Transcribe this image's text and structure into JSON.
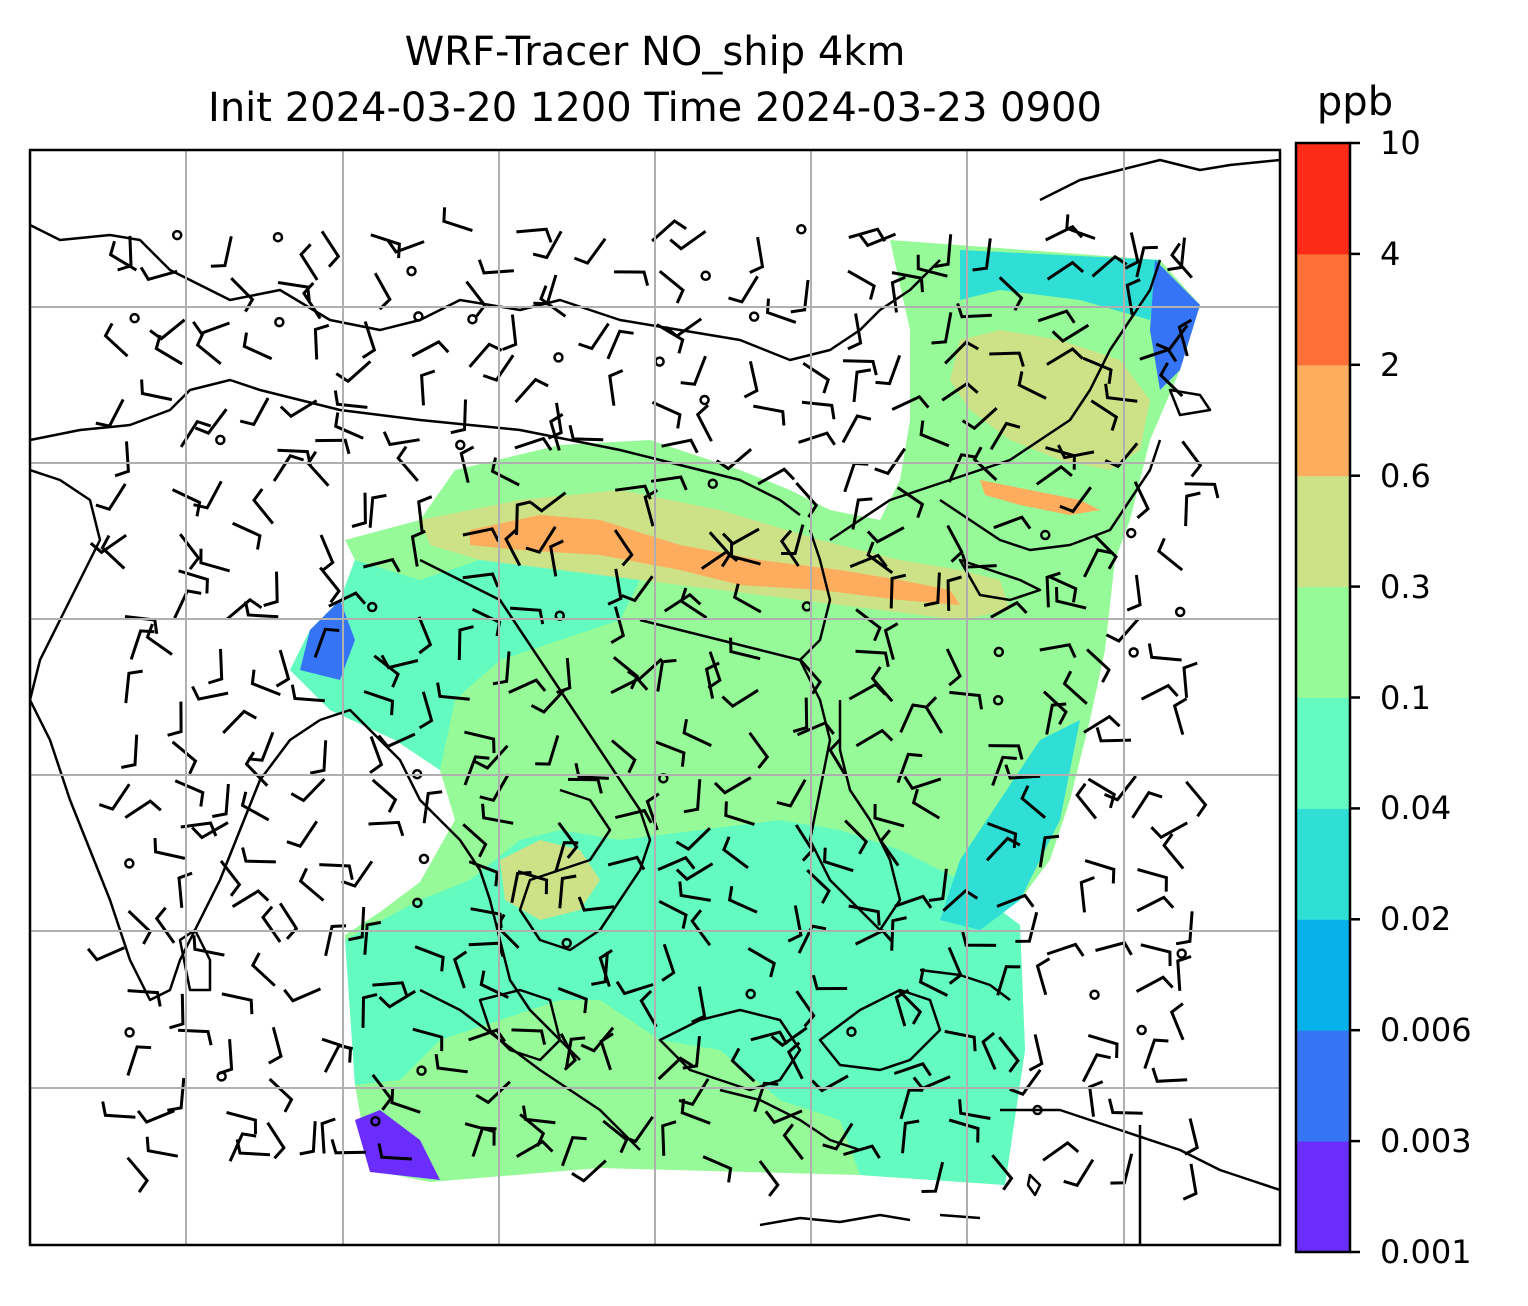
{
  "title_line1": "WRF-Tracer NO_ship 4km",
  "title_line2": "Init 2024-03-20 1200 Time 2024-03-23 0900",
  "colorbar": {
    "unit": "ppb",
    "ticks": [
      "0.001",
      "0.003",
      "0.006",
      "0.02",
      "0.04",
      "0.1",
      "0.3",
      "0.6",
      "2",
      "4",
      "10"
    ],
    "colors": [
      "#6a2dfc",
      "#3575f5",
      "#07b1ea",
      "#2fdfd6",
      "#63fbc0",
      "#96fa98",
      "#cde187",
      "#fdad5d",
      "#fe7038",
      "#fb2b17"
    ]
  },
  "map": {
    "gridlines": true,
    "field": "NO_ship tracer concentration",
    "overlay": "wind barbs",
    "ship_lane_color": "#fdad5d"
  }
}
